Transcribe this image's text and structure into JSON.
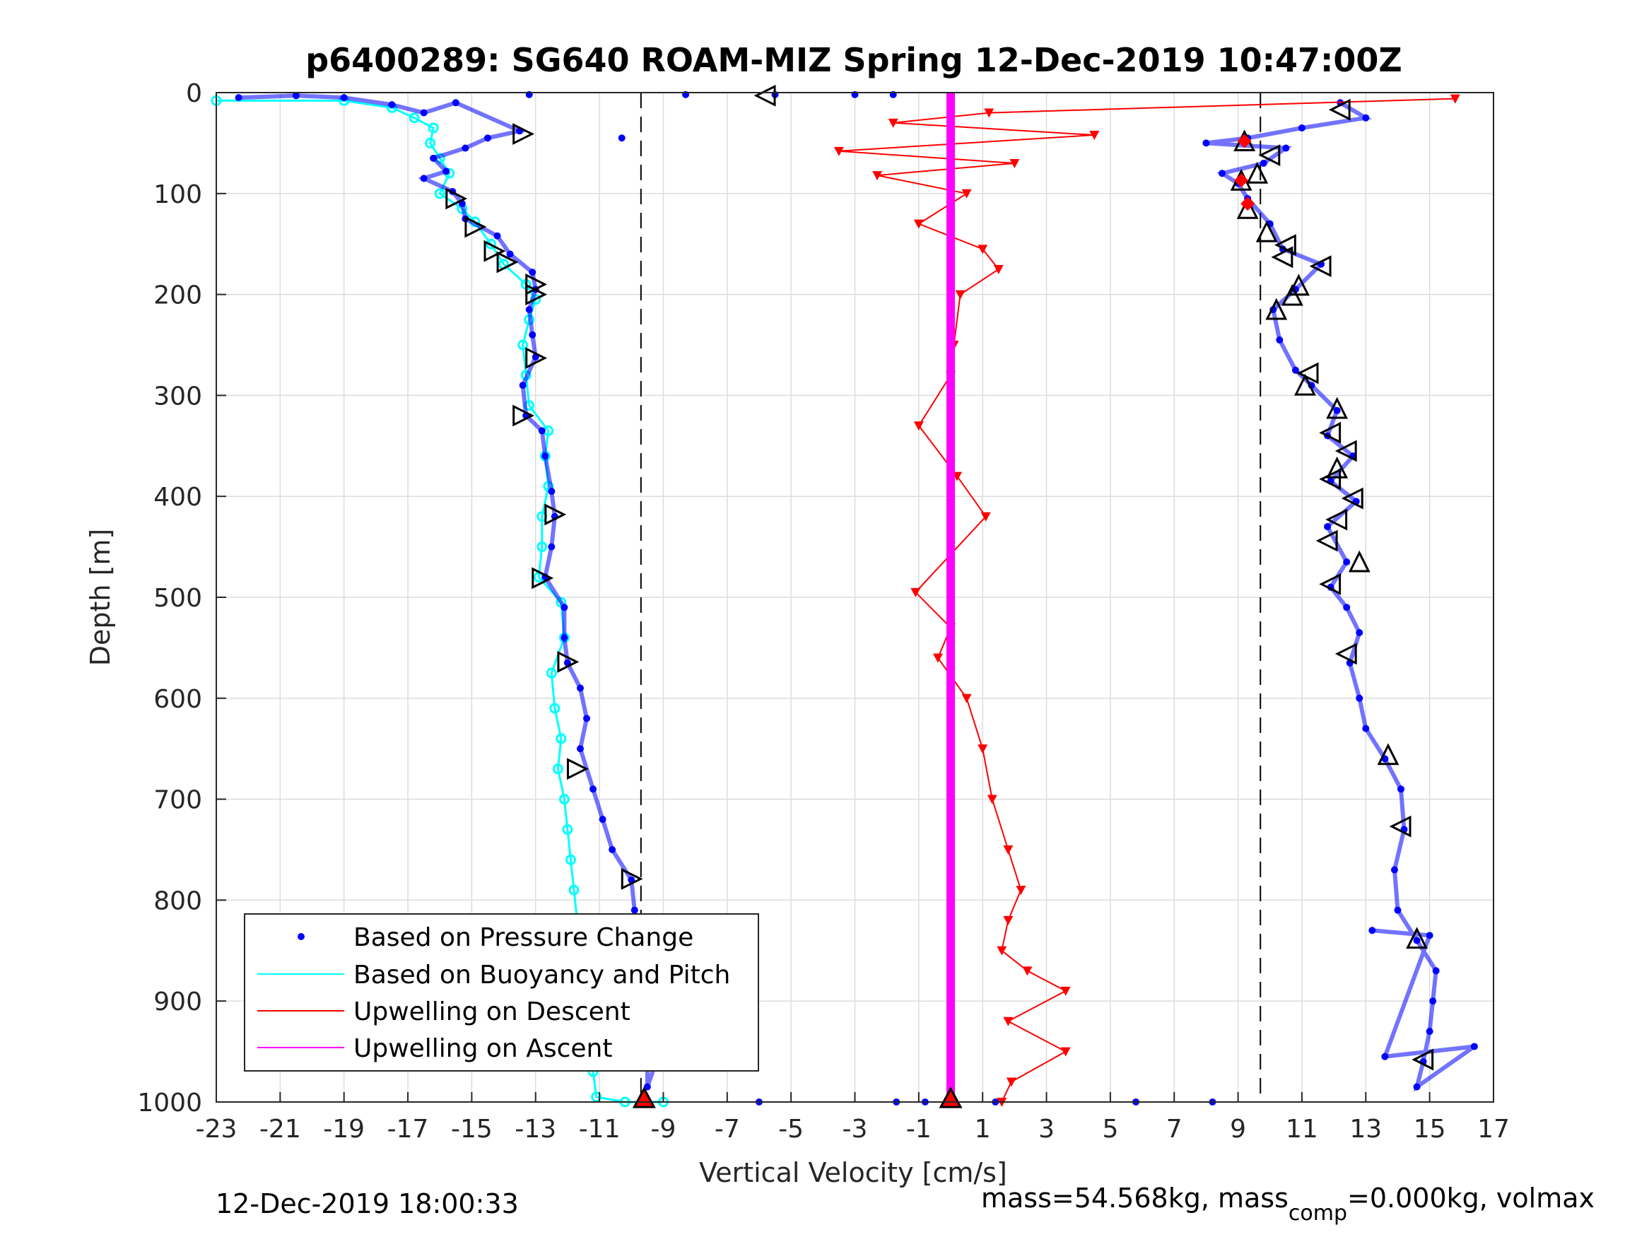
{
  "chart_data": {
    "type": "scatter",
    "title": "p6400289: SG640 ROAM-MIZ Spring 12-Dec-2019 10:47:00Z",
    "xlabel": "Vertical Velocity [cm/s]",
    "ylabel": "Depth [m]",
    "xlim": [
      -23,
      17
    ],
    "ylim": [
      0,
      1000
    ],
    "y_reversed": true,
    "grid": true,
    "legend_position": "bottom-left",
    "x_ticks": [
      "-23",
      "-21",
      "-19",
      "-17",
      "-15",
      "-13",
      "-11",
      "-9",
      "-7",
      "-5",
      "-3",
      "-1",
      "1",
      "3",
      "5",
      "7",
      "9",
      "11",
      "13",
      "15",
      "17"
    ],
    "y_ticks": [
      "0",
      "100",
      "200",
      "300",
      "400",
      "500",
      "600",
      "700",
      "800",
      "900",
      "1000"
    ],
    "reference_lines_x": [
      -9.7,
      9.7
    ],
    "series": [
      {
        "name": "Based on Pressure Change",
        "color": "#0000ff",
        "marker": "dot",
        "dive_points": [
          [
            -22.3,
            5
          ],
          [
            -20.5,
            3
          ],
          [
            -19,
            5
          ],
          [
            -17.5,
            12
          ],
          [
            -16.5,
            20
          ],
          [
            -15.5,
            10
          ],
          [
            -13.5,
            38
          ],
          [
            -14.5,
            45
          ],
          [
            -15.2,
            55
          ],
          [
            -16.2,
            65
          ],
          [
            -15.8,
            78
          ],
          [
            -16.5,
            85
          ],
          [
            -15.6,
            98
          ],
          [
            -15.3,
            110
          ],
          [
            -15.2,
            125
          ],
          [
            -14.2,
            142
          ],
          [
            -13.8,
            160
          ],
          [
            -13.1,
            178
          ],
          [
            -13.0,
            195
          ],
          [
            -13.2,
            215
          ],
          [
            -13.1,
            240
          ],
          [
            -13.0,
            262
          ],
          [
            -13.4,
            290
          ],
          [
            -13.3,
            320
          ],
          [
            -12.8,
            335
          ],
          [
            -12.7,
            360
          ],
          [
            -12.5,
            395
          ],
          [
            -12.4,
            420
          ],
          [
            -12.5,
            450
          ],
          [
            -12.7,
            480
          ],
          [
            -12.1,
            510
          ],
          [
            -12.1,
            540
          ],
          [
            -12.0,
            565
          ],
          [
            -11.6,
            590
          ],
          [
            -11.4,
            620
          ],
          [
            -11.6,
            650
          ],
          [
            -11.2,
            690
          ],
          [
            -10.9,
            720
          ],
          [
            -10.6,
            750
          ],
          [
            -10.0,
            780
          ],
          [
            -9.9,
            810
          ],
          [
            -10.0,
            840
          ],
          [
            -9.5,
            870
          ],
          [
            -9.8,
            900
          ],
          [
            -9.6,
            930
          ],
          [
            -9.5,
            960
          ],
          [
            -9.5,
            985
          ],
          [
            -8.5,
            895
          ],
          [
            -8.3,
            945
          ],
          [
            -10.3,
            45
          ],
          [
            -8.3,
            2
          ],
          [
            -13.2,
            2
          ]
        ],
        "climb_points": [
          [
            12.2,
            10
          ],
          [
            13.0,
            25
          ],
          [
            11.0,
            35
          ],
          [
            9.3,
            45
          ],
          [
            8.0,
            50
          ],
          [
            10.5,
            55
          ],
          [
            9.8,
            70
          ],
          [
            8.5,
            80
          ],
          [
            9.0,
            90
          ],
          [
            9.3,
            105
          ],
          [
            10.0,
            130
          ],
          [
            10.4,
            155
          ],
          [
            11.6,
            170
          ],
          [
            10.8,
            195
          ],
          [
            10.1,
            215
          ],
          [
            10.3,
            245
          ],
          [
            10.8,
            275
          ],
          [
            11.3,
            290
          ],
          [
            12.1,
            315
          ],
          [
            11.8,
            340
          ],
          [
            12.6,
            360
          ],
          [
            11.9,
            385
          ],
          [
            12.7,
            405
          ],
          [
            11.8,
            430
          ],
          [
            12.4,
            465
          ],
          [
            11.9,
            490
          ],
          [
            12.4,
            510
          ],
          [
            12.8,
            535
          ],
          [
            12.5,
            565
          ],
          [
            12.8,
            600
          ],
          [
            13.0,
            630
          ],
          [
            13.6,
            660
          ],
          [
            14.1,
            690
          ],
          [
            14.2,
            730
          ],
          [
            13.9,
            770
          ],
          [
            14.0,
            810
          ],
          [
            14.6,
            840
          ],
          [
            15.2,
            870
          ],
          [
            15.1,
            900
          ],
          [
            15.0,
            930
          ],
          [
            14.8,
            960
          ],
          [
            14.6,
            985
          ],
          [
            16.4,
            945
          ],
          [
            13.6,
            955
          ],
          [
            15.0,
            835
          ],
          [
            13.2,
            830
          ],
          [
            5.8,
            1000
          ],
          [
            -6,
            1000
          ],
          [
            -1.7,
            1000
          ],
          [
            -0.8,
            1000
          ],
          [
            1.4,
            1000
          ],
          [
            8.2,
            1000
          ],
          [
            -3.0,
            2
          ],
          [
            -5.5,
            2
          ],
          [
            -1.8,
            2
          ]
        ]
      },
      {
        "name": "Based on Buoyancy and Pitch",
        "color": "#00ffff",
        "points": [
          [
            -23,
            8
          ],
          [
            -19,
            8
          ],
          [
            -17.5,
            15
          ],
          [
            -16.8,
            25
          ],
          [
            -16.2,
            35
          ],
          [
            -16.3,
            50
          ],
          [
            -16.0,
            65
          ],
          [
            -15.7,
            80
          ],
          [
            -16.0,
            100
          ],
          [
            -15.3,
            115
          ],
          [
            -14.9,
            128
          ],
          [
            -14.4,
            150
          ],
          [
            -14.0,
            170
          ],
          [
            -13.3,
            190
          ],
          [
            -13.0,
            205
          ],
          [
            -13.2,
            225
          ],
          [
            -13.4,
            250
          ],
          [
            -13.3,
            280
          ],
          [
            -13.2,
            310
          ],
          [
            -12.6,
            335
          ],
          [
            -12.7,
            360
          ],
          [
            -12.6,
            390
          ],
          [
            -12.8,
            420
          ],
          [
            -12.8,
            450
          ],
          [
            -12.9,
            480
          ],
          [
            -12.2,
            505
          ],
          [
            -12.1,
            540
          ],
          [
            -12.5,
            575
          ],
          [
            -12.4,
            610
          ],
          [
            -12.2,
            640
          ],
          [
            -12.3,
            670
          ],
          [
            -12.1,
            700
          ],
          [
            -12.0,
            730
          ],
          [
            -11.9,
            760
          ],
          [
            -11.8,
            790
          ],
          [
            -11.7,
            820
          ],
          [
            -11.6,
            850
          ],
          [
            -11.9,
            880
          ],
          [
            -11.8,
            910
          ],
          [
            -11.5,
            940
          ],
          [
            -11.2,
            970
          ],
          [
            -11.1,
            995
          ],
          [
            -10.2,
            1000
          ],
          [
            -9.0,
            1000
          ]
        ]
      },
      {
        "name": "Upwelling on Descent",
        "color": "#ff0000",
        "marker": "triangle-down",
        "points": [
          [
            15.8,
            6
          ],
          [
            1.2,
            20
          ],
          [
            -1.8,
            30
          ],
          [
            4.5,
            42
          ],
          [
            -3.5,
            58
          ],
          [
            2.0,
            70
          ],
          [
            -2.3,
            82
          ],
          [
            0.5,
            100
          ],
          [
            -1.0,
            130
          ],
          [
            1.0,
            155
          ],
          [
            1.5,
            175
          ],
          [
            0.3,
            200
          ],
          [
            0.1,
            250
          ],
          [
            0.0,
            280
          ],
          [
            -1.0,
            330
          ],
          [
            0.2,
            380
          ],
          [
            1.1,
            420
          ],
          [
            -1.1,
            495
          ],
          [
            0.0,
            530
          ],
          [
            -0.4,
            560
          ],
          [
            0.5,
            600
          ],
          [
            1.0,
            650
          ],
          [
            1.3,
            700
          ],
          [
            1.8,
            750
          ],
          [
            2.2,
            790
          ],
          [
            1.8,
            820
          ],
          [
            1.6,
            850
          ],
          [
            2.4,
            870
          ],
          [
            3.6,
            890
          ],
          [
            1.8,
            920
          ],
          [
            3.6,
            950
          ],
          [
            1.9,
            980
          ],
          [
            1.6,
            1000
          ]
        ]
      },
      {
        "name": "Upwelling on Ascent",
        "color": "#ff00ff",
        "points": [
          [
            0,
            0
          ],
          [
            0,
            1000
          ]
        ]
      }
    ],
    "markers": {
      "dive_open_triangles": [
        [
          -5.8,
          3,
          "left"
        ],
        [
          -13.4,
          41,
          "right"
        ],
        [
          -15.5,
          105,
          "right"
        ],
        [
          -14.9,
          133,
          "right"
        ],
        [
          -14.3,
          157,
          "right"
        ],
        [
          -13.9,
          168,
          "right"
        ],
        [
          -13.0,
          190,
          "right"
        ],
        [
          -13.0,
          200,
          "right"
        ],
        [
          -13.0,
          263,
          "right"
        ],
        [
          -13.4,
          320,
          "right"
        ],
        [
          -12.4,
          418,
          "right"
        ],
        [
          -12.8,
          481,
          "right"
        ],
        [
          -12.0,
          564,
          "right"
        ],
        [
          -11.7,
          670,
          "right"
        ],
        [
          -10.0,
          779,
          "right"
        ],
        [
          -9.6,
          881,
          "right"
        ],
        [
          -9.7,
          940,
          "right"
        ]
      ],
      "climb_open_triangles": [
        [
          12.2,
          17,
          "left"
        ],
        [
          9.2,
          48,
          "up"
        ],
        [
          10.0,
          62,
          "left"
        ],
        [
          9.6,
          80,
          "up"
        ],
        [
          9.1,
          87,
          "up"
        ],
        [
          9.3,
          115,
          "up"
        ],
        [
          9.9,
          138,
          "up"
        ],
        [
          10.5,
          151,
          "left"
        ],
        [
          10.4,
          163,
          "left"
        ],
        [
          11.6,
          172,
          "left"
        ],
        [
          10.9,
          191,
          "up"
        ],
        [
          10.7,
          201,
          "up"
        ],
        [
          10.2,
          215,
          "up"
        ],
        [
          11.2,
          278,
          "left"
        ],
        [
          11.1,
          290,
          "up"
        ],
        [
          12.1,
          313,
          "up"
        ],
        [
          11.9,
          337,
          "left"
        ],
        [
          12.4,
          355,
          "left"
        ],
        [
          12.1,
          372,
          "up"
        ],
        [
          11.9,
          383,
          "left"
        ],
        [
          12.6,
          402,
          "left"
        ],
        [
          12.1,
          423,
          "left"
        ],
        [
          11.8,
          444,
          "left"
        ],
        [
          12.8,
          465,
          "up"
        ],
        [
          11.9,
          487,
          "left"
        ],
        [
          12.4,
          556,
          "left"
        ],
        [
          13.7,
          656,
          "up"
        ],
        [
          14.1,
          727,
          "left"
        ],
        [
          14.6,
          838,
          "up"
        ],
        [
          14.8,
          958,
          "left"
        ]
      ],
      "red_filled_triangles": [
        [
          -9.6,
          998
        ],
        [
          0,
          998
        ]
      ],
      "red_filled_diamonds": [
        [
          9.2,
          48
        ],
        [
          9.1,
          87
        ],
        [
          9.3,
          110
        ]
      ]
    },
    "footer_left": "12-Dec-2019 18:00:33",
    "footer_right_prefix": "mass=54.568kg, mass",
    "footer_right_sub": "comp",
    "footer_right_suffix": "=0.000kg, volmax"
  }
}
